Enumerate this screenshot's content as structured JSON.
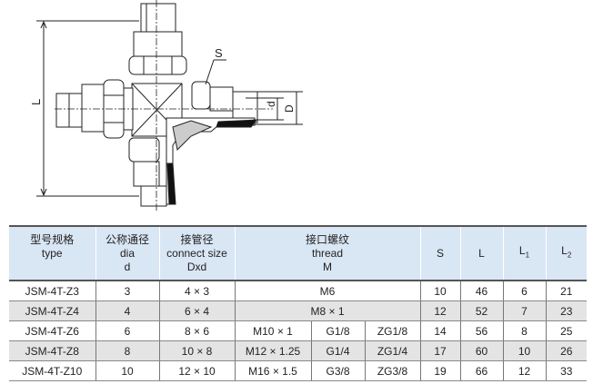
{
  "diagram": {
    "labels": {
      "L": "L",
      "S": "S",
      "d": "d",
      "D": "D"
    }
  },
  "table": {
    "headers": [
      {
        "zh": "型号规格",
        "en": "type",
        "sym": ""
      },
      {
        "zh": "公称通径",
        "en": "dia",
        "sym": "d"
      },
      {
        "zh": "接管径",
        "en": "connect size",
        "sym": "Dxd"
      },
      {
        "zh": "接口螺纹",
        "en": "thread",
        "sym": "M"
      },
      {
        "zh": "",
        "en": "S",
        "sym": ""
      },
      {
        "zh": "",
        "en": "L",
        "sym": ""
      },
      {
        "zh": "",
        "en": "L",
        "sym": "1"
      },
      {
        "zh": "",
        "en": "L",
        "sym": "2"
      }
    ],
    "rows": [
      {
        "type": "JSM-4T-Z3",
        "dia": "3",
        "connect": "4 × 3",
        "thread": [
          "M6"
        ],
        "S": "10",
        "L": "46",
        "L1": "6",
        "L2": "21"
      },
      {
        "type": "JSM-4T-Z4",
        "dia": "4",
        "connect": "6 × 4",
        "thread": [
          "M8 × 1"
        ],
        "S": "12",
        "L": "52",
        "L1": "7",
        "L2": "23"
      },
      {
        "type": "JSM-4T-Z6",
        "dia": "6",
        "connect": "8 × 6",
        "thread": [
          "M10 × 1",
          "G1/8",
          "ZG1/8"
        ],
        "S": "14",
        "L": "56",
        "L1": "8",
        "L2": "25"
      },
      {
        "type": "JSM-4T-Z8",
        "dia": "8",
        "connect": "10 × 8",
        "thread": [
          "M12 × 1.25",
          "G1/4",
          "ZG1/4"
        ],
        "S": "17",
        "L": "60",
        "L1": "10",
        "L2": "26"
      },
      {
        "type": "JSM-4T-Z10",
        "dia": "10",
        "connect": "12 × 10",
        "thread": [
          "M16 × 1.5",
          "G3/8",
          "ZG3/8"
        ],
        "S": "19",
        "L": "66",
        "L1": "12",
        "L2": "33"
      }
    ]
  }
}
